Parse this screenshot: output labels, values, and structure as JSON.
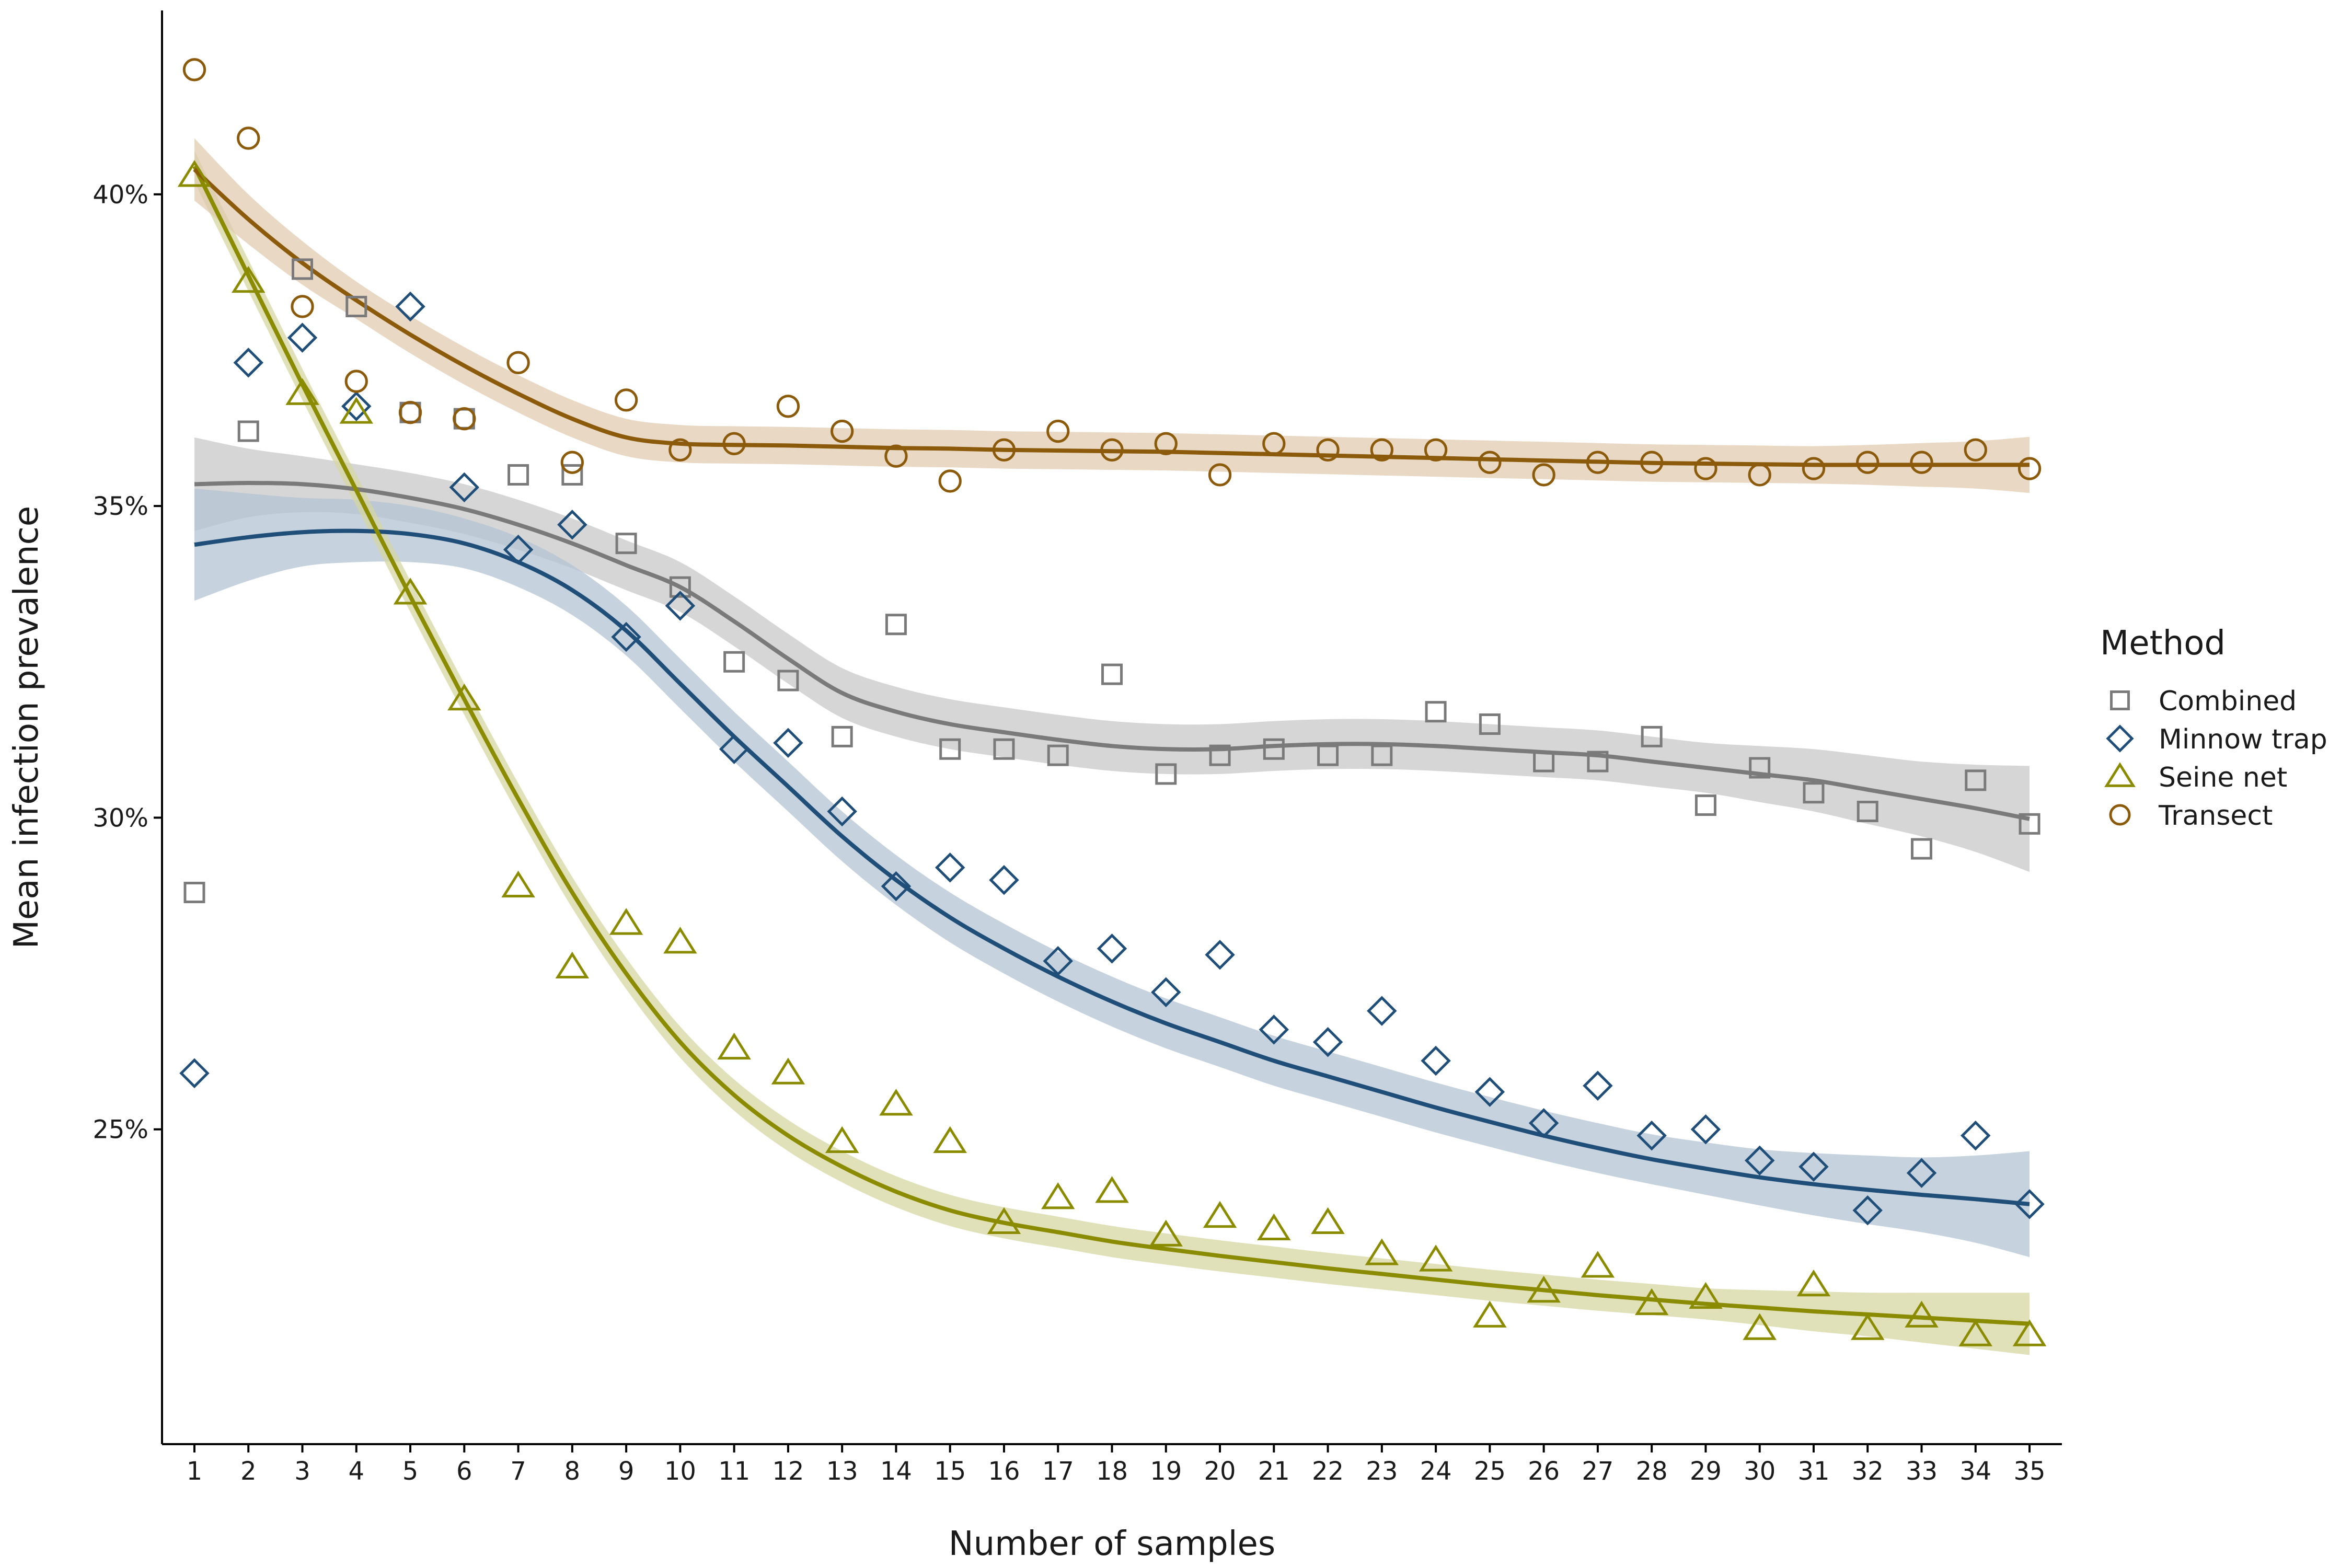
{
  "chart_data": {
    "type": "scatter",
    "xlabel": "Number of samples",
    "ylabel": "Mean infection prevalence",
    "x": [
      1,
      2,
      3,
      4,
      5,
      6,
      7,
      8,
      9,
      10,
      11,
      12,
      13,
      14,
      15,
      16,
      17,
      18,
      19,
      20,
      21,
      22,
      23,
      24,
      25,
      26,
      27,
      28,
      29,
      30,
      31,
      32,
      33,
      34,
      35
    ],
    "xlim": [
      0.4,
      35.6
    ],
    "ylim": [
      0.1995,
      0.4295
    ],
    "yticks": [
      0.25,
      0.3,
      0.35,
      0.4
    ],
    "ytick_labels": [
      "25%",
      "30%",
      "35%",
      "40%"
    ],
    "grid": false,
    "legend": {
      "title": "Method",
      "position": "right"
    },
    "series": [
      {
        "name": "Combined",
        "marker": "square",
        "color": "#7a7a7a",
        "ribbon_color": "#c8c8c8",
        "values": [
          0.288,
          0.362,
          0.388,
          0.382,
          0.365,
          0.364,
          0.355,
          0.355,
          0.344,
          0.337,
          0.325,
          0.322,
          0.313,
          0.331,
          0.311,
          0.311,
          0.31,
          0.323,
          0.307,
          0.31,
          0.311,
          0.31,
          0.31,
          0.317,
          0.315,
          0.309,
          0.309,
          0.313,
          0.302,
          0.308,
          0.304,
          0.301,
          0.295,
          0.306,
          0.299
        ],
        "smooth": [
          0.3535,
          0.3537,
          0.3535,
          0.3527,
          0.3513,
          0.3495,
          0.347,
          0.344,
          0.3405,
          0.337,
          0.3315,
          0.3255,
          0.32,
          0.317,
          0.315,
          0.3137,
          0.3125,
          0.3115,
          0.311,
          0.311,
          0.3115,
          0.3118,
          0.3118,
          0.3115,
          0.311,
          0.3105,
          0.31,
          0.309,
          0.308,
          0.307,
          0.306,
          0.3045,
          0.303,
          0.3015,
          0.2998
        ],
        "band": [
          0.0075,
          0.0055,
          0.0045,
          0.004,
          0.004,
          0.004,
          0.004,
          0.004,
          0.004,
          0.004,
          0.004,
          0.004,
          0.004,
          0.004,
          0.004,
          0.004,
          0.004,
          0.004,
          0.004,
          0.004,
          0.004,
          0.004,
          0.004,
          0.004,
          0.004,
          0.004,
          0.004,
          0.004,
          0.004,
          0.0045,
          0.005,
          0.0055,
          0.006,
          0.007,
          0.0085
        ]
      },
      {
        "name": "Minnow trap",
        "marker": "diamond",
        "color": "#1f4e79",
        "ribbon_color": "#b3c3d3",
        "values": [
          0.259,
          0.373,
          0.377,
          0.366,
          0.382,
          0.353,
          0.343,
          0.347,
          0.329,
          0.334,
          0.311,
          0.312,
          0.301,
          0.289,
          0.292,
          0.29,
          0.277,
          0.279,
          0.272,
          0.278,
          0.266,
          0.264,
          0.269,
          0.261,
          0.256,
          0.251,
          0.257,
          0.249,
          0.25,
          0.245,
          0.244,
          0.237,
          0.243,
          0.249,
          0.238
        ],
        "smooth": [
          0.3438,
          0.345,
          0.3458,
          0.346,
          0.3455,
          0.344,
          0.341,
          0.3365,
          0.33,
          0.3215,
          0.313,
          0.305,
          0.297,
          0.29,
          0.284,
          0.279,
          0.2745,
          0.2705,
          0.267,
          0.264,
          0.261,
          0.2585,
          0.256,
          0.2535,
          0.2512,
          0.249,
          0.247,
          0.2452,
          0.2437,
          0.2423,
          0.2412,
          0.2403,
          0.2395,
          0.2388,
          0.238
        ],
        "band": [
          0.009,
          0.007,
          0.0055,
          0.005,
          0.0045,
          0.004,
          0.004,
          0.004,
          0.004,
          0.004,
          0.004,
          0.004,
          0.004,
          0.004,
          0.004,
          0.004,
          0.004,
          0.004,
          0.004,
          0.004,
          0.004,
          0.004,
          0.004,
          0.004,
          0.004,
          0.004,
          0.004,
          0.004,
          0.0042,
          0.0045,
          0.005,
          0.0055,
          0.006,
          0.007,
          0.0085
        ]
      },
      {
        "name": "Seine net",
        "marker": "triangle",
        "color": "#8b8b00",
        "ribbon_color": "#d6d6a2",
        "values": [
          0.403,
          0.386,
          0.368,
          0.365,
          0.336,
          0.319,
          0.289,
          0.276,
          0.283,
          0.28,
          0.263,
          0.259,
          0.248,
          0.254,
          0.248,
          0.235,
          0.239,
          0.24,
          0.233,
          0.236,
          0.234,
          0.235,
          0.23,
          0.229,
          0.22,
          0.224,
          0.228,
          0.222,
          0.223,
          0.218,
          0.225,
          0.218,
          0.22,
          0.217,
          0.217
        ],
        "smooth": [
          0.4045,
          0.387,
          0.3695,
          0.3525,
          0.3355,
          0.319,
          0.303,
          0.288,
          0.275,
          0.264,
          0.2555,
          0.249,
          0.244,
          0.24,
          0.237,
          0.235,
          0.2335,
          0.232,
          0.2308,
          0.2297,
          0.2287,
          0.2277,
          0.2268,
          0.2259,
          0.225,
          0.2242,
          0.2234,
          0.2227,
          0.222,
          0.2214,
          0.2208,
          0.2203,
          0.2198,
          0.2193,
          0.2188
        ],
        "band": [
          0.0025,
          0.0025,
          0.0025,
          0.0025,
          0.0025,
          0.0025,
          0.0025,
          0.0025,
          0.0025,
          0.0025,
          0.0025,
          0.0025,
          0.0025,
          0.0025,
          0.0025,
          0.0025,
          0.0025,
          0.0025,
          0.0025,
          0.0025,
          0.0025,
          0.0025,
          0.0025,
          0.0025,
          0.0025,
          0.0025,
          0.0025,
          0.0025,
          0.0025,
          0.0028,
          0.0032,
          0.0035,
          0.004,
          0.0045,
          0.005
        ]
      },
      {
        "name": "Transect",
        "marker": "circle",
        "color": "#8b5a0a",
        "ribbon_color": "#e0cbb0",
        "values": [
          0.42,
          0.409,
          0.382,
          0.37,
          0.365,
          0.364,
          0.373,
          0.357,
          0.367,
          0.359,
          0.36,
          0.366,
          0.362,
          0.358,
          0.354,
          0.359,
          0.362,
          0.359,
          0.36,
          0.355,
          0.36,
          0.359,
          0.359,
          0.359,
          0.357,
          0.355,
          0.357,
          0.357,
          0.356,
          0.355,
          0.356,
          0.357,
          0.357,
          0.359,
          0.356
        ],
        "smooth": [
          0.404,
          0.396,
          0.389,
          0.383,
          0.3775,
          0.3725,
          0.368,
          0.364,
          0.361,
          0.36,
          0.3598,
          0.3597,
          0.3595,
          0.3593,
          0.3592,
          0.359,
          0.3589,
          0.3588,
          0.3587,
          0.3585,
          0.3583,
          0.3581,
          0.3579,
          0.3577,
          0.3575,
          0.3573,
          0.3571,
          0.3569,
          0.3568,
          0.3567,
          0.3566,
          0.3566,
          0.3566,
          0.3566,
          0.3566
        ],
        "band": [
          0.005,
          0.004,
          0.0035,
          0.003,
          0.003,
          0.003,
          0.003,
          0.003,
          0.003,
          0.003,
          0.003,
          0.003,
          0.003,
          0.003,
          0.003,
          0.003,
          0.003,
          0.003,
          0.003,
          0.003,
          0.003,
          0.003,
          0.003,
          0.003,
          0.003,
          0.003,
          0.003,
          0.003,
          0.003,
          0.003,
          0.003,
          0.0032,
          0.0035,
          0.0038,
          0.0045
        ]
      }
    ]
  }
}
